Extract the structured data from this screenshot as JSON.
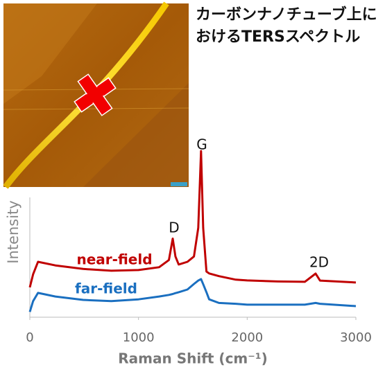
{
  "chart_data": {
    "type": "line",
    "title": "カーボンナノチューブ上におけるTERSスペクトル",
    "x_label": "Raman Shift (cm⁻¹)",
    "y_label": "Intensity",
    "x": [
      0,
      30,
      75,
      235,
      490,
      750,
      1000,
      1190,
      1280,
      1315,
      1340,
      1370,
      1450,
      1510,
      1550,
      1575,
      1595,
      1625,
      1650,
      1740,
      1895,
      2000,
      2280,
      2530,
      2630,
      2670,
      3000
    ],
    "series": [
      {
        "name": "near-field",
        "color": "#c00000",
        "values": [
          16.7,
          24,
          31,
          29,
          27,
          26,
          26.4,
          28,
          32,
          44,
          34,
          29.5,
          31,
          34,
          50,
          93,
          50,
          25.6,
          24.5,
          23,
          21,
          20.6,
          20,
          19.8,
          24.4,
          20.5,
          19.4
        ]
      },
      {
        "name": "far-field",
        "color": "#1a6fc0",
        "values": [
          3,
          9,
          13.6,
          11.6,
          9.7,
          9,
          10,
          11.6,
          12.5,
          13,
          13.5,
          14,
          15.5,
          18.6,
          20.5,
          21.3,
          18.5,
          14,
          10,
          8,
          7.5,
          7,
          7,
          7,
          8,
          7.5,
          6.2
        ]
      }
    ],
    "annotations": [
      "D",
      "G",
      "2D"
    ],
    "xlim": [
      0,
      3000
    ],
    "xticks": [
      0,
      1000,
      2000,
      3000
    ],
    "ylim": [
      0,
      100
    ]
  }
}
